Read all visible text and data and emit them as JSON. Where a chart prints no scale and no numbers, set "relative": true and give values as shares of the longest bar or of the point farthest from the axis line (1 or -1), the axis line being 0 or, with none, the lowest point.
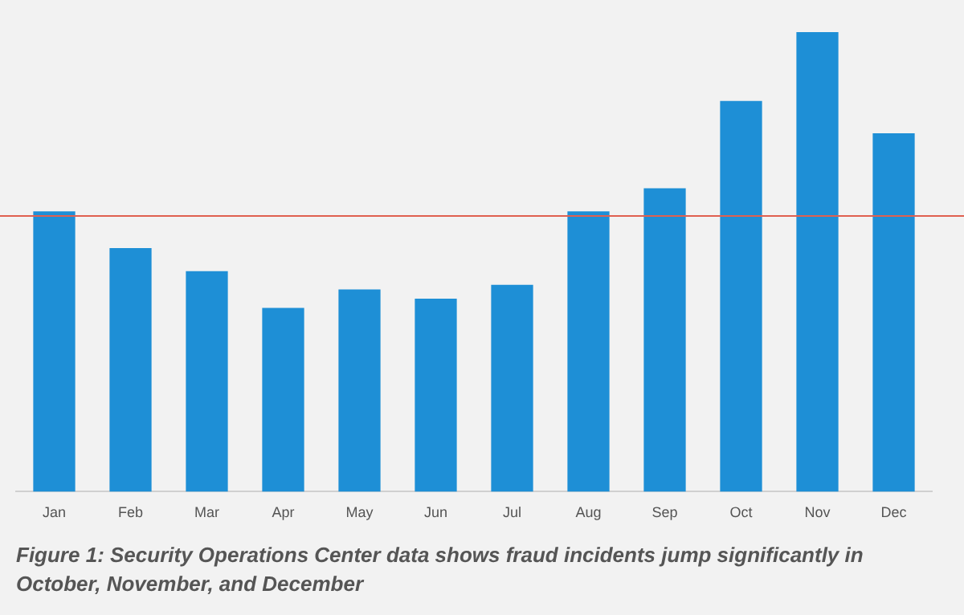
{
  "chart_data": {
    "type": "bar",
    "relative": true,
    "categories": [
      "Jan",
      "Feb",
      "Mar",
      "Apr",
      "May",
      "Jun",
      "Jul",
      "Aug",
      "Sep",
      "Oct",
      "Nov",
      "Dec"
    ],
    "values": [
      0.61,
      0.53,
      0.48,
      0.4,
      0.44,
      0.42,
      0.45,
      0.61,
      0.66,
      0.85,
      1,
      0.78
    ],
    "color": "#1e8fd6",
    "ref_lines": [
      {
        "axis": "y",
        "value": 0.6,
        "color": "#e06050",
        "line_style": "solid"
      }
    ],
    "grid": false,
    "legend": false,
    "annotations": [
      "Figure 1: Security Operations Center data shows fraud incidents jump significantly in October, November, and December"
    ]
  }
}
